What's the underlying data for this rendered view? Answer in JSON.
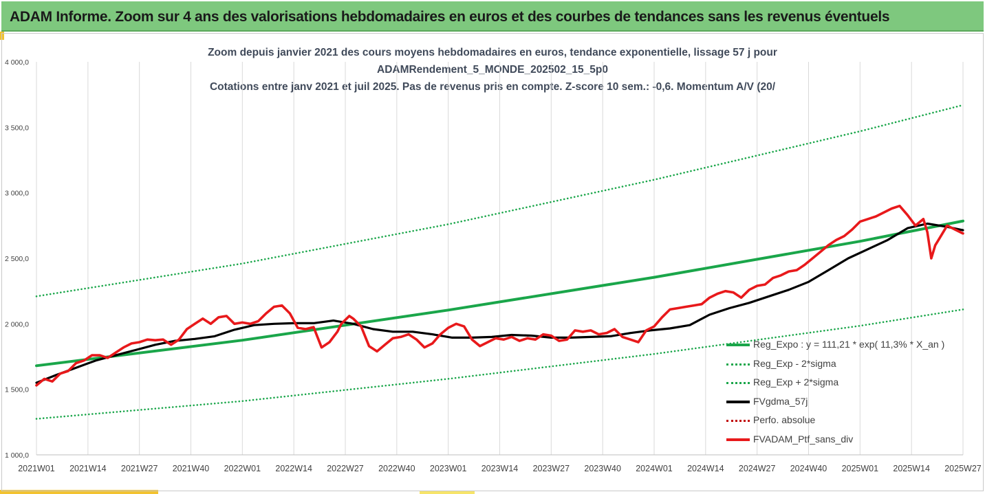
{
  "banner": {
    "title": "ADAM Informe. Zoom sur 4 ans des valorisations hebdomadaires en euros et des courbes de tendances sans les revenus éventuels"
  },
  "colors": {
    "banner_bg": "#7ec87e",
    "trend": "#1aa64a",
    "band": "#1aa64a",
    "fvgdma": "#000000",
    "perfo": "#c00000",
    "ptf": "#e8191b",
    "grid": "#d9d9d9",
    "title_text": "#404a5a"
  },
  "chart_data": {
    "type": "line",
    "title_lines": [
      "Zoom depuis janvier 2021 des cours moyens hebdomadaires  en euros, tendance exponentielle, lissage 57 j pour",
      "ADAMRendement_5_MONDE_202502_15_5p0",
      "Cotations entre janv 2021 et juil 2025. Pas de revenus pris en compte. Z-score 10 sem.: -0,6. Momentum A/V (20/"
    ],
    "x_tick_labels": [
      "2021W01",
      "2021W14",
      "2021W27",
      "2021W40",
      "2022W01",
      "2022W14",
      "2022W27",
      "2022W40",
      "2023W01",
      "2023W14",
      "2023W27",
      "2023W40",
      "2024W01",
      "2024W14",
      "2024W27",
      "2024W40",
      "2025W01",
      "2025W14",
      "2025W27"
    ],
    "x_weeks_per_tick": 13,
    "y_tick_labels": [
      "1 000,0",
      "1 500,0",
      "2 000,0",
      "2 500,0",
      "3 000,0",
      "3 500,0",
      "4 000,0"
    ],
    "ylim": [
      1000,
      4000
    ],
    "y_step": 500,
    "grid": "vertical",
    "legend_position": "bottom-right",
    "series": [
      {
        "name": "Reg_Expo : y = 111,21 * exp( 11,3% *  X_an )",
        "style": "solid-thick",
        "color": "#1aa64a",
        "x": [
          0,
          52,
          104,
          156,
          208,
          234
        ],
        "y": [
          1680,
          1875,
          2105,
          2355,
          2630,
          2785
        ]
      },
      {
        "name": "Reg_Exp - 2*sigma",
        "style": "dotted",
        "color": "#1aa64a",
        "x": [
          0,
          52,
          104,
          156,
          208,
          234
        ],
        "y": [
          1275,
          1410,
          1580,
          1770,
          1985,
          2110
        ]
      },
      {
        "name": "Reg_Exp + 2*sigma",
        "style": "dotted",
        "color": "#1aa64a",
        "x": [
          0,
          52,
          104,
          156,
          208,
          234
        ],
        "y": [
          2210,
          2460,
          2760,
          3100,
          3470,
          3670
        ]
      },
      {
        "name": "FVgdma_57j",
        "style": "solid-thick",
        "color": "#000000",
        "x": [
          0,
          5,
          10,
          15,
          20,
          25,
          30,
          35,
          40,
          45,
          50,
          55,
          60,
          65,
          70,
          75,
          80,
          85,
          90,
          95,
          100,
          105,
          110,
          115,
          120,
          125,
          130,
          135,
          140,
          145,
          150,
          155,
          160,
          165,
          170,
          175,
          180,
          185,
          190,
          195,
          200,
          205,
          210,
          215,
          220,
          225,
          230,
          234
        ],
        "y": [
          1550,
          1610,
          1665,
          1720,
          1760,
          1800,
          1840,
          1870,
          1885,
          1905,
          1955,
          1990,
          2000,
          2005,
          2005,
          2025,
          2000,
          1960,
          1940,
          1940,
          1920,
          1895,
          1895,
          1900,
          1915,
          1910,
          1895,
          1895,
          1900,
          1905,
          1930,
          1950,
          1965,
          1990,
          2070,
          2120,
          2160,
          2210,
          2260,
          2320,
          2410,
          2500,
          2570,
          2640,
          2730,
          2765,
          2740,
          2715
        ]
      },
      {
        "name": "Perfo. absolue",
        "style": "dotted",
        "color": "#c00000",
        "x": [],
        "y": []
      },
      {
        "name": "FVADAM_Ptf_sans_div",
        "style": "solid-thick",
        "color": "#e8191b",
        "x": [
          0,
          2,
          4,
          6,
          8,
          10,
          12,
          14,
          16,
          18,
          20,
          22,
          24,
          26,
          28,
          30,
          32,
          34,
          36,
          38,
          40,
          42,
          44,
          46,
          48,
          50,
          52,
          54,
          56,
          58,
          60,
          62,
          64,
          66,
          68,
          70,
          72,
          74,
          75,
          76,
          77,
          79,
          80,
          82,
          84,
          86,
          88,
          90,
          92,
          94,
          96,
          98,
          100,
          102,
          104,
          106,
          108,
          110,
          112,
          114,
          116,
          118,
          120,
          122,
          124,
          126,
          128,
          130,
          132,
          134,
          136,
          138,
          140,
          142,
          144,
          146,
          148,
          150,
          152,
          154,
          156,
          158,
          160,
          162,
          164,
          166,
          168,
          170,
          172,
          174,
          176,
          178,
          180,
          182,
          184,
          186,
          188,
          190,
          192,
          194,
          196,
          198,
          200,
          202,
          204,
          206,
          208,
          210,
          212,
          214,
          216,
          218,
          220,
          222,
          224,
          225,
          226,
          227,
          228,
          229,
          230,
          232,
          234
        ],
        "y": [
          1530,
          1580,
          1560,
          1620,
          1640,
          1700,
          1720,
          1760,
          1760,
          1740,
          1780,
          1820,
          1850,
          1860,
          1880,
          1875,
          1880,
          1840,
          1880,
          1960,
          2000,
          2040,
          2000,
          2050,
          2060,
          2000,
          2010,
          2000,
          2020,
          2080,
          2130,
          2140,
          2080,
          1970,
          1960,
          1975,
          1820,
          1860,
          1900,
          1940,
          2000,
          2060,
          2040,
          1980,
          1830,
          1790,
          1840,
          1890,
          1900,
          1920,
          1880,
          1820,
          1850,
          1920,
          1970,
          2000,
          1980,
          1880,
          1830,
          1860,
          1890,
          1880,
          1900,
          1870,
          1890,
          1880,
          1920,
          1910,
          1870,
          1880,
          1950,
          1940,
          1950,
          1920,
          1930,
          1960,
          1900,
          1880,
          1860,
          1950,
          1980,
          2050,
          2110,
          2120,
          2130,
          2140,
          2150,
          2200,
          2230,
          2250,
          2240,
          2200,
          2260,
          2290,
          2300,
          2350,
          2370,
          2400,
          2410,
          2450,
          2500,
          2550,
          2600,
          2640,
          2670,
          2720,
          2780,
          2800,
          2820,
          2850,
          2880,
          2900,
          2830,
          2750,
          2800,
          2700,
          2500,
          2600,
          2650,
          2700,
          2750,
          2720,
          2690
        ]
      }
    ]
  }
}
